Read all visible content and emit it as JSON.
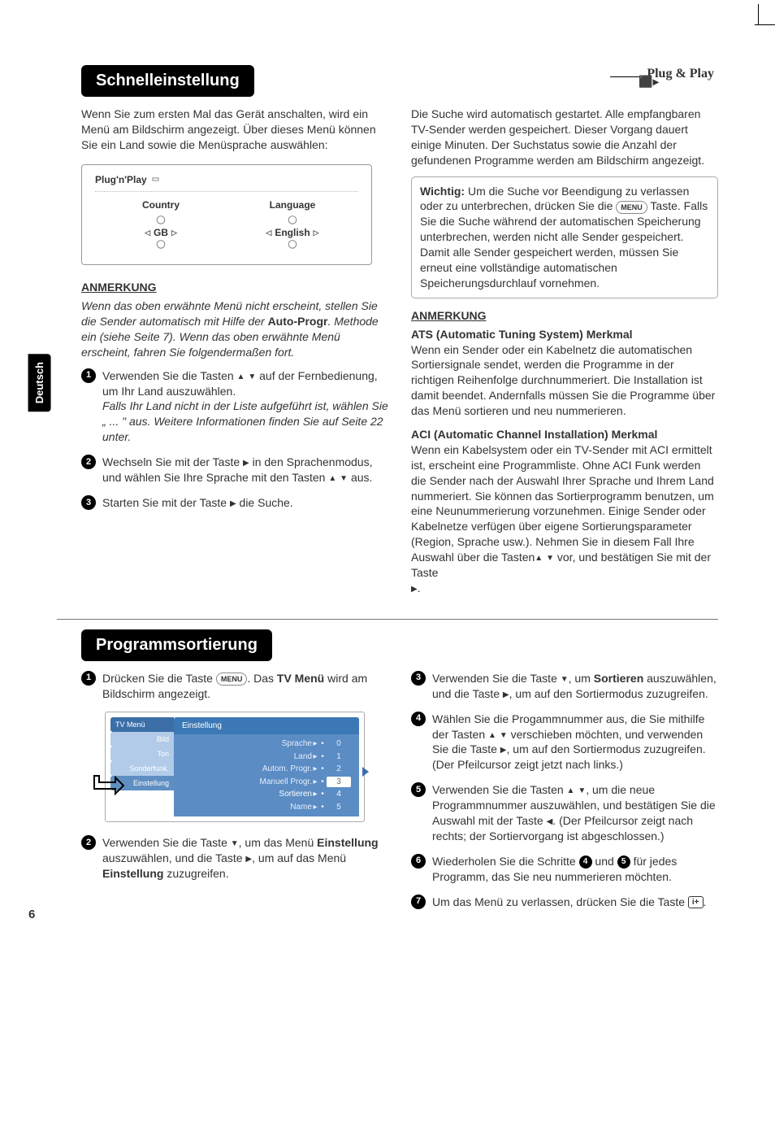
{
  "plugplay_label": "Plug & Play",
  "lang_tab": "Deutsch",
  "page_number": "6",
  "section1_title": "Schnelleinstellung",
  "intro1": "Wenn Sie zum ersten Mal das Gerät anschalten, wird ein Menü am Bildschirm angezeigt. Über dieses Menü können Sie ein Land sowie die Menüsprache auswählen:",
  "pnp_box": {
    "title": "Plug'n'Play",
    "country_label": "Country",
    "country_value": "GB",
    "language_label": "Language",
    "language_value": "English"
  },
  "anmerkung_label": "ANMERKUNG",
  "note1": "Wenn das oben erwähnte Menü nicht erscheint, stellen Sie die Sender automatisch mit Hilfe der ",
  "note1_bold": "Auto-Progr",
  "note1_cont": ". Methode ein (siehe Seite 7). Wenn das oben erwähnte Menü erscheint, fahren Sie folgendermaßen fort.",
  "steps1": {
    "s1a": "Verwenden Sie die Tasten ",
    "s1b": " auf der Fernbedienung, um Ihr Land auszuwählen.",
    "s1_italic": "Falls Ihr Land nicht in der Liste aufgeführt ist, wählen Sie „ ... \" aus. Weitere Informationen finden Sie auf Seite 22 unter.",
    "s2a": "Wechseln Sie mit der Taste ",
    "s2b": " in den Sprachenmodus, und wählen Sie Ihre Sprache mit den Tasten ",
    "s2c": " aus.",
    "s3a": "Starten Sie mit der Taste ",
    "s3b": " die Suche."
  },
  "right_col": {
    "p1": "Die Suche wird automatisch gestartet. Alle empfangbaren TV-Sender werden gespeichert. Dieser Vorgang dauert einige Minuten. Der Suchstatus sowie die Anzahl der gefundenen Programme werden am Bildschirm angezeigt.",
    "callout_bold": "Wichtig:",
    "callout_a": " Um die Suche vor Beendigung zu verlassen oder zu unterbrechen, drücken Sie die ",
    "callout_b": " Taste. Falls Sie die Suche während der automatischen Speicherung unterbrechen, werden nicht alle Sender gespeichert. Damit alle Sender gespeichert werden, müssen Sie erneut eine vollständige automatischen Speicherungsdurchlauf vornehmen.",
    "ats_title": "ATS (Automatic Tuning System) Merkmal",
    "ats_body": "Wenn ein Sender oder ein Kabelnetz die automatischen Sortiersignale sendet, werden die Programme in der richtigen Reihenfolge durchnummeriert. Die Installation ist damit beendet. Andernfalls müssen Sie die Programme über das Menü sortieren und neu nummerieren.",
    "aci_title": "ACI (Automatic Channel Installation) Merkmal",
    "aci_body_a": "Wenn ein Kabelsystem oder ein TV-Sender mit ACI ermittelt ist, erscheint eine Programmliste. Ohne ACI Funk werden die Sender nach der Auswahl Ihrer Sprache und Ihrem Land nummeriert. Sie können das Sortierprogramm benutzen, um eine Neunummerierung vorzunehmen. Einige Sender oder Kabelnetze verfügen über eigene Sortierungsparameter (Region, Sprache usw.). Nehmen Sie in diesem Fall Ihre Auswahl über die Tasten",
    "aci_body_b": " vor, und bestätigen Sie mit der Taste ",
    "aci_body_c": "."
  },
  "section2_title": "Programmsortierung",
  "sort": {
    "s1a": "Drücken Sie die Taste ",
    "s1b": ". Das ",
    "s1c": "TV Menü",
    "s1d": " wird am Bildschirm angezeigt.",
    "s2a": "Verwenden Sie die Taste ",
    "s2b": ", um das Menü ",
    "s2c": "Einstellung",
    "s2d": " auszuwählen, und die Taste ",
    "s2e": ", um auf das Menü ",
    "s2f": "Einstellung",
    "s2g": " zuzugreifen.",
    "s3a": "Verwenden Sie die Taste ",
    "s3b": ", um ",
    "s3c": "Sortieren",
    "s3d": " auszuwählen, und die Taste ",
    "s3e": ", um auf den Sortiermodus zuzugreifen.",
    "s4a": "Wählen Sie die Progammnummer aus, die Sie mithilfe der Tasten ",
    "s4b": " verschieben möchten, und verwenden Sie die Taste ",
    "s4c": ", um auf den Sortiermodus zuzugreifen.",
    "s4d": "(Der Pfeilcursor zeigt jetzt nach links.)",
    "s5a": "Verwenden Sie die Tasten ",
    "s5b": ", um die neue Programmnummer auszuwählen, und bestätigen Sie die Auswahl mit der Taste ",
    "s5c": ". (Der Pfeilcursor zeigt nach rechts; der Sortiervorgang ist abgeschlossen.)",
    "s6a": "Wiederholen Sie die Schritte ",
    "s6b": " und ",
    "s6c": " für jedes Programm, das Sie neu nummerieren möchten.",
    "s7a": "Um das Menü zu verlassen, drücken Sie die Taste ",
    "s7b": "."
  },
  "tv_menu": {
    "top": "TV Menü",
    "tabs": [
      "Bild",
      "Ton",
      "Sonderfunk.",
      "Einstellung"
    ],
    "panel_title": "Einstellung",
    "items": [
      {
        "label": "Sprache",
        "val": "0"
      },
      {
        "label": "Land",
        "val": "1"
      },
      {
        "label": "Autom. Progr.",
        "val": "2"
      },
      {
        "label": "Manuell Progr.",
        "val": "3",
        "sel": true
      },
      {
        "label": "Sortieren",
        "val": "4",
        "hi": true
      },
      {
        "label": "Name",
        "val": "5"
      }
    ]
  },
  "menu_btn_text": "MENU",
  "info_btn_text": "i+"
}
